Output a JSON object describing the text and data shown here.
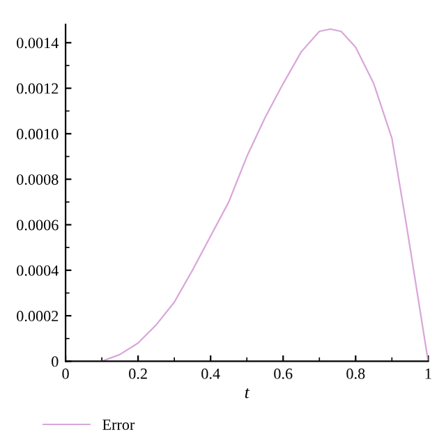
{
  "chart_data": {
    "type": "line",
    "xlabel": "t",
    "series": [
      {
        "name": "Error",
        "color": "#d9a6d9",
        "x": [
          0.1,
          0.15,
          0.2,
          0.25,
          0.3,
          0.35,
          0.4,
          0.45,
          0.5,
          0.55,
          0.6,
          0.65,
          0.7,
          0.73,
          0.76,
          0.8,
          0.85,
          0.9,
          0.94,
          0.97,
          1.0
        ],
        "values": [
          0,
          3e-05,
          8e-05,
          0.00016,
          0.00026,
          0.0004,
          0.00055,
          0.0007,
          0.0009,
          0.00107,
          0.00122,
          0.00136,
          0.00145,
          0.00146,
          0.00145,
          0.00138,
          0.00122,
          0.00098,
          0.0006,
          0.0003,
          0
        ]
      }
    ],
    "xlim": [
      0,
      1
    ],
    "xticks": [
      0,
      0.2,
      0.4,
      0.6,
      0.8,
      1
    ],
    "ylim": [
      0,
      0.00148
    ],
    "yticks": [
      0,
      0.0002,
      0.0004,
      0.0006,
      0.0008,
      {
        "value": 0.001,
        "label": "0.0010"
      },
      0.0012,
      0.0014
    ],
    "grid": false,
    "legend": "bottom left",
    "marker": "none",
    "line_style": "solid"
  }
}
